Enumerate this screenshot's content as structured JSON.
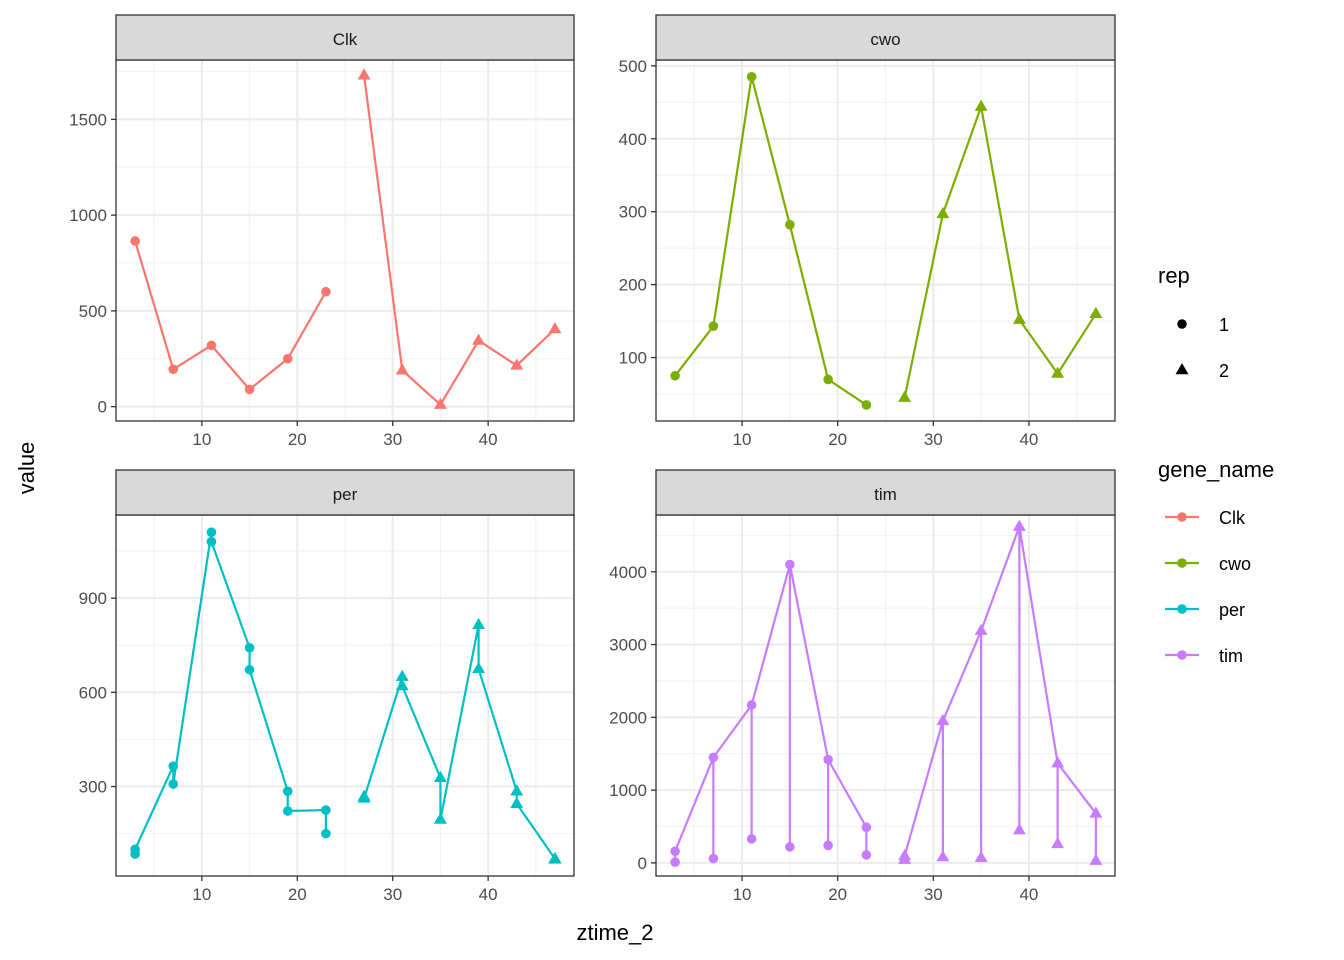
{
  "axis_titles": {
    "x": "ztime_2",
    "y": "value"
  },
  "legends": {
    "rep": {
      "title": "rep",
      "items": [
        {
          "label": "1",
          "shape": "circle"
        },
        {
          "label": "2",
          "shape": "triangle"
        }
      ]
    },
    "gene_name": {
      "title": "gene_name",
      "items": [
        {
          "label": "Clk",
          "color": "#F8766D"
        },
        {
          "label": "cwo",
          "color": "#7CAE00"
        },
        {
          "label": "per",
          "color": "#00BFC4"
        },
        {
          "label": "tim",
          "color": "#C77CFF"
        }
      ]
    }
  },
  "chart_data": [
    {
      "type": "line",
      "facet": "Clk",
      "color": "#F8766D",
      "xlim": [
        1,
        49
      ],
      "ylim": [
        -75,
        1810
      ],
      "x_ticks": [
        10,
        20,
        30,
        40
      ],
      "y_ticks": [
        0,
        500,
        1000,
        1500
      ],
      "grid": true,
      "points": [
        {
          "x": 3,
          "y": 865,
          "rep": 1
        },
        {
          "x": 7,
          "y": 195,
          "rep": 1
        },
        {
          "x": 11,
          "y": 320,
          "rep": 1
        },
        {
          "x": 15,
          "y": 90,
          "rep": 1
        },
        {
          "x": 19,
          "y": 250,
          "rep": 1
        },
        {
          "x": 23,
          "y": 600,
          "rep": 1
        },
        {
          "x": 27,
          "y": 1730,
          "rep": 2
        },
        {
          "x": 31,
          "y": 190,
          "rep": 2
        },
        {
          "x": 35,
          "y": 10,
          "rep": 2
        },
        {
          "x": 39,
          "y": 345,
          "rep": 2
        },
        {
          "x": 43,
          "y": 215,
          "rep": 2
        },
        {
          "x": 47,
          "y": 405,
          "rep": 2
        }
      ],
      "segments": []
    },
    {
      "type": "line",
      "facet": "cwo",
      "color": "#7CAE00",
      "xlim": [
        1,
        49
      ],
      "ylim": [
        13,
        508
      ],
      "x_ticks": [
        10,
        20,
        30,
        40
      ],
      "y_ticks": [
        100,
        200,
        300,
        400,
        500
      ],
      "grid": true,
      "points": [
        {
          "x": 3,
          "y": 75,
          "rep": 1
        },
        {
          "x": 7,
          "y": 143,
          "rep": 1
        },
        {
          "x": 11,
          "y": 485,
          "rep": 1
        },
        {
          "x": 15,
          "y": 282,
          "rep": 1
        },
        {
          "x": 19,
          "y": 70,
          "rep": 1
        },
        {
          "x": 23,
          "y": 35,
          "rep": 1
        },
        {
          "x": 27,
          "y": 45,
          "rep": 2
        },
        {
          "x": 31,
          "y": 297,
          "rep": 2
        },
        {
          "x": 35,
          "y": 444,
          "rep": 2
        },
        {
          "x": 39,
          "y": 152,
          "rep": 2
        },
        {
          "x": 43,
          "y": 78,
          "rep": 2
        },
        {
          "x": 47,
          "y": 160,
          "rep": 2
        }
      ],
      "segments": []
    },
    {
      "type": "line",
      "facet": "per",
      "color": "#00BFC4",
      "xlim": [
        1,
        49
      ],
      "ylim": [
        15,
        1165
      ],
      "x_ticks": [
        10,
        20,
        30,
        40
      ],
      "y_ticks": [
        300,
        600,
        900
      ],
      "grid": true,
      "points": [
        {
          "x": 3,
          "y": 100,
          "rep": 1
        },
        {
          "x": 3,
          "y": 85,
          "rep": 1
        },
        {
          "x": 7,
          "y": 365,
          "rep": 1
        },
        {
          "x": 7,
          "y": 308,
          "rep": 1
        },
        {
          "x": 11,
          "y": 1110,
          "rep": 1
        },
        {
          "x": 11,
          "y": 1080,
          "rep": 1
        },
        {
          "x": 15,
          "y": 742,
          "rep": 1
        },
        {
          "x": 15,
          "y": 672,
          "rep": 1
        },
        {
          "x": 19,
          "y": 285,
          "rep": 1
        },
        {
          "x": 19,
          "y": 222,
          "rep": 1
        },
        {
          "x": 23,
          "y": 225,
          "rep": 1
        },
        {
          "x": 23,
          "y": 150,
          "rep": 1
        },
        {
          "x": 27,
          "y": 268,
          "rep": 2
        },
        {
          "x": 27,
          "y": 262,
          "rep": 2
        },
        {
          "x": 31,
          "y": 650,
          "rep": 2
        },
        {
          "x": 31,
          "y": 620,
          "rep": 2
        },
        {
          "x": 35,
          "y": 328,
          "rep": 2
        },
        {
          "x": 35,
          "y": 195,
          "rep": 2
        },
        {
          "x": 39,
          "y": 815,
          "rep": 2
        },
        {
          "x": 39,
          "y": 675,
          "rep": 2
        },
        {
          "x": 43,
          "y": 285,
          "rep": 2
        },
        {
          "x": 43,
          "y": 245,
          "rep": 2
        },
        {
          "x": 47,
          "y": 70,
          "rep": 2
        },
        {
          "x": 47,
          "y": 68,
          "rep": 2
        }
      ],
      "path_segments": [
        [
          [
            3,
            100
          ],
          [
            7,
            365
          ],
          [
            7,
            308
          ],
          [
            11,
            1110
          ],
          [
            11,
            1080
          ],
          [
            15,
            742
          ],
          [
            15,
            672
          ],
          [
            19,
            285
          ],
          [
            19,
            222
          ],
          [
            23,
            225
          ],
          [
            23,
            150
          ]
        ],
        [
          [
            27,
            268
          ],
          [
            27,
            262
          ],
          [
            31,
            650
          ],
          [
            31,
            620
          ],
          [
            35,
            328
          ],
          [
            35,
            195
          ],
          [
            39,
            815
          ],
          [
            39,
            675
          ],
          [
            43,
            285
          ],
          [
            43,
            245
          ],
          [
            47,
            70
          ],
          [
            47,
            68
          ]
        ]
      ]
    },
    {
      "type": "line",
      "facet": "tim",
      "color": "#C77CFF",
      "xlim": [
        1,
        49
      ],
      "ylim": [
        -180,
        4780
      ],
      "x_ticks": [
        10,
        20,
        30,
        40
      ],
      "y_ticks": [
        0,
        1000,
        2000,
        3000,
        4000
      ],
      "grid": true,
      "points": [
        {
          "x": 3,
          "y": 160,
          "rep": 1
        },
        {
          "x": 3,
          "y": 10,
          "rep": 1
        },
        {
          "x": 7,
          "y": 1450,
          "rep": 1
        },
        {
          "x": 7,
          "y": 60,
          "rep": 1
        },
        {
          "x": 11,
          "y": 2170,
          "rep": 1
        },
        {
          "x": 11,
          "y": 330,
          "rep": 1
        },
        {
          "x": 15,
          "y": 4100,
          "rep": 1
        },
        {
          "x": 15,
          "y": 220,
          "rep": 1
        },
        {
          "x": 19,
          "y": 1420,
          "rep": 1
        },
        {
          "x": 19,
          "y": 240,
          "rep": 1
        },
        {
          "x": 23,
          "y": 490,
          "rep": 1
        },
        {
          "x": 23,
          "y": 110,
          "rep": 1
        },
        {
          "x": 27,
          "y": 95,
          "rep": 2
        },
        {
          "x": 27,
          "y": 45,
          "rep": 2
        },
        {
          "x": 31,
          "y": 1950,
          "rep": 2
        },
        {
          "x": 31,
          "y": 80,
          "rep": 2
        },
        {
          "x": 35,
          "y": 3190,
          "rep": 2
        },
        {
          "x": 35,
          "y": 70,
          "rep": 2
        },
        {
          "x": 39,
          "y": 4620,
          "rep": 2
        },
        {
          "x": 39,
          "y": 450,
          "rep": 2
        },
        {
          "x": 43,
          "y": 1370,
          "rep": 2
        },
        {
          "x": 43,
          "y": 260,
          "rep": 2
        },
        {
          "x": 47,
          "y": 680,
          "rep": 2
        },
        {
          "x": 47,
          "y": 30,
          "rep": 2
        }
      ],
      "path_segments": [
        [
          [
            3,
            10
          ],
          [
            3,
            160
          ],
          [
            7,
            1450
          ],
          [
            7,
            60
          ],
          [
            7,
            1450
          ],
          [
            11,
            2170
          ],
          [
            11,
            330
          ],
          [
            11,
            2170
          ],
          [
            15,
            4100
          ],
          [
            15,
            220
          ],
          [
            15,
            4100
          ],
          [
            19,
            1420
          ],
          [
            19,
            240
          ],
          [
            19,
            1420
          ],
          [
            23,
            490
          ],
          [
            23,
            110
          ]
        ],
        [
          [
            27,
            45
          ],
          [
            27,
            95
          ],
          [
            31,
            1950
          ],
          [
            31,
            80
          ],
          [
            31,
            1950
          ],
          [
            35,
            3190
          ],
          [
            35,
            70
          ],
          [
            35,
            3190
          ],
          [
            39,
            4620
          ],
          [
            39,
            450
          ],
          [
            39,
            4620
          ],
          [
            43,
            1370
          ],
          [
            43,
            260
          ],
          [
            43,
            1370
          ],
          [
            47,
            680
          ],
          [
            47,
            30
          ]
        ]
      ]
    }
  ]
}
